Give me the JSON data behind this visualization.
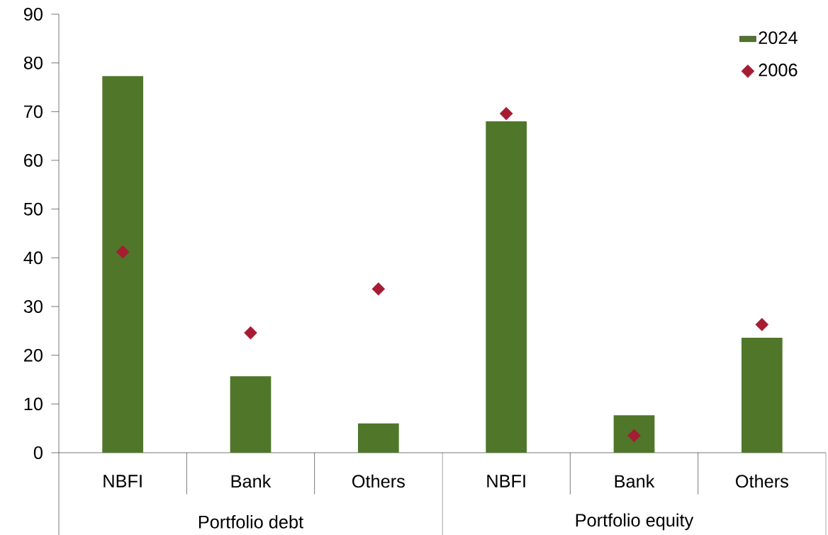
{
  "chart_data": {
    "type": "bar",
    "categories": [
      "NBFI",
      "Bank",
      "Others",
      "NBFI",
      "Bank",
      "Others"
    ],
    "series": [
      {
        "name": "2024",
        "color": "#50762a",
        "values": [
          77.3,
          15.7,
          6.0,
          68.0,
          7.7,
          23.6
        ]
      },
      {
        "name": "2006",
        "type": "scatter",
        "marker": "diamond",
        "color": "#a61c33",
        "values": [
          41.2,
          24.6,
          33.6,
          69.6,
          3.5,
          26.3
        ]
      }
    ],
    "ylim": [
      0,
      90
    ],
    "yticks": [
      0,
      10,
      20,
      30,
      40,
      50,
      60,
      70,
      80,
      90
    ],
    "legend": "top right",
    "annotations": [
      "Portfolio debt",
      "Portfolio equity"
    ]
  }
}
